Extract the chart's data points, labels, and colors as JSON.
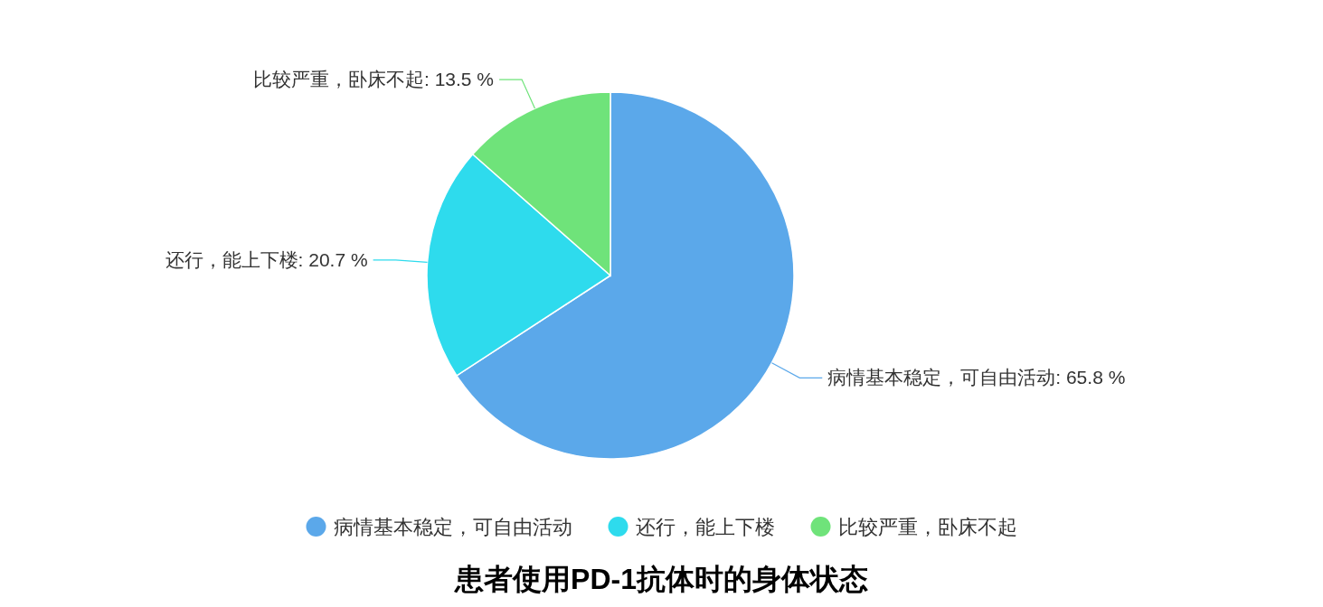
{
  "chart_data": {
    "type": "pie",
    "title": "患者使用PD-1抗体时的身体状态",
    "categories": [
      "病情基本稳定，可自由活动",
      "还行，能上下楼",
      "比较严重，卧床不起"
    ],
    "values": [
      65.8,
      20.7,
      13.5
    ],
    "value_labels": [
      "病情基本稳定，可自由活动: 65.8 %",
      "还行，能上下楼: 20.7 %",
      "比较严重，卧床不起: 13.5 %"
    ],
    "colors": [
      "#5ba8ea",
      "#2edbed",
      "#6fe37a"
    ],
    "legend": "bottom"
  }
}
